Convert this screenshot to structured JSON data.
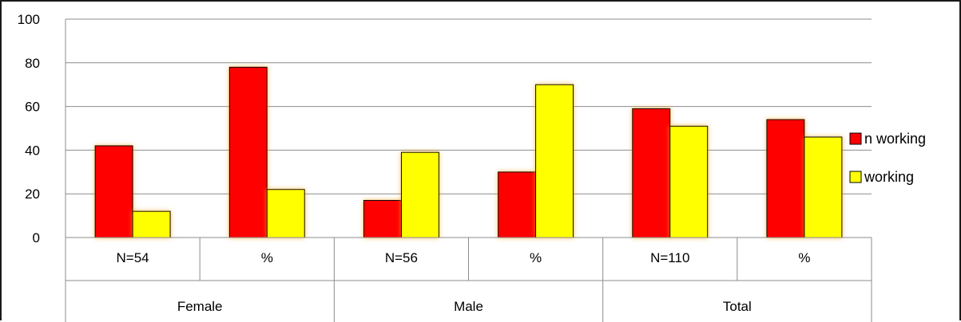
{
  "chart_data": {
    "type": "bar",
    "groups": [
      "Female",
      "Male",
      "Total"
    ],
    "categories": [
      "N=54",
      "%",
      "N=56",
      "%",
      "N=110",
      "%"
    ],
    "series": [
      {
        "name": "n working",
        "values": [
          42,
          78,
          17,
          30,
          59,
          54
        ],
        "color": "#ff0000"
      },
      {
        "name": "working",
        "values": [
          12,
          22,
          39,
          70,
          51,
          46
        ],
        "color": "#ffff00"
      }
    ],
    "ylim": [
      0,
      100
    ],
    "yticks": [
      0,
      20,
      40,
      60,
      80,
      100
    ],
    "grid": true,
    "legend_position": "right",
    "title": "",
    "xlabel": "",
    "ylabel": ""
  }
}
